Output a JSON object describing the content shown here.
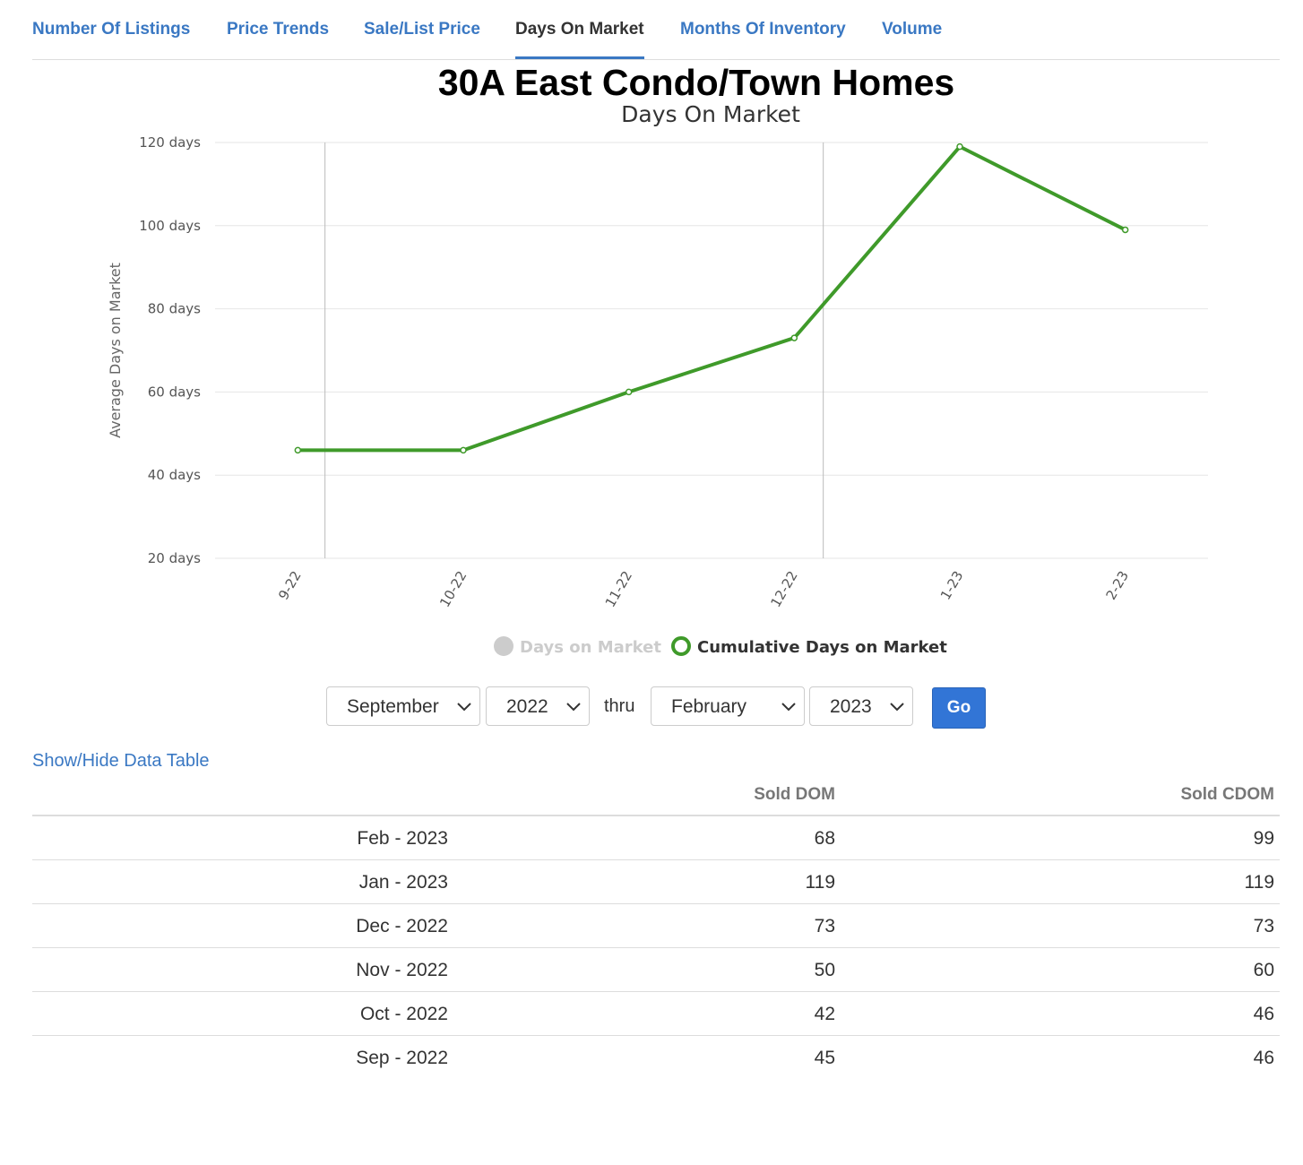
{
  "tabs": [
    {
      "label": "Number Of Listings",
      "active": false
    },
    {
      "label": "Price Trends",
      "active": false
    },
    {
      "label": "Sale/List Price",
      "active": false
    },
    {
      "label": "Days On Market",
      "active": true
    },
    {
      "label": "Months Of Inventory",
      "active": false
    },
    {
      "label": "Volume",
      "active": false
    }
  ],
  "chart_data": {
    "type": "line",
    "title": "30A East Condo/Town Homes",
    "subtitle": "Days On Market",
    "ylabel": "Average Days on Market",
    "xlabel": "",
    "categories": [
      "9-22",
      "10-22",
      "11-22",
      "12-22",
      "1-23",
      "2-23"
    ],
    "y_tick_labels": [
      "120 days",
      "100 days",
      "80 days",
      "60 days",
      "40 days",
      "20 days"
    ],
    "y_ticks": [
      120,
      100,
      80,
      60,
      40,
      20
    ],
    "ylim": [
      20,
      120
    ],
    "grid": true,
    "legend_position": "bottom",
    "series": [
      {
        "name": "Days on Market",
        "visible": false,
        "color": "#cccccc",
        "values": [
          45,
          42,
          50,
          73,
          119,
          68
        ]
      },
      {
        "name": "Cumulative Days on Market",
        "visible": true,
        "color": "#3f9a2a",
        "values": [
          46,
          46,
          60,
          73,
          119,
          99
        ]
      }
    ]
  },
  "controls": {
    "start_month": "September",
    "start_year": "2022",
    "thru_label": "thru",
    "end_month": "February",
    "end_year": "2023",
    "go_label": "Go"
  },
  "table": {
    "toggle_label": "Show/Hide Data Table",
    "headers": {
      "dom": "Sold DOM",
      "cdom": "Sold CDOM"
    },
    "rows": [
      {
        "date": "Feb - 2023",
        "dom": "68",
        "cdom": "99"
      },
      {
        "date": "Jan - 2023",
        "dom": "119",
        "cdom": "119"
      },
      {
        "date": "Dec - 2022",
        "dom": "73",
        "cdom": "73"
      },
      {
        "date": "Nov - 2022",
        "dom": "50",
        "cdom": "60"
      },
      {
        "date": "Oct - 2022",
        "dom": "42",
        "cdom": "46"
      },
      {
        "date": "Sep - 2022",
        "dom": "45",
        "cdom": "46"
      }
    ]
  }
}
